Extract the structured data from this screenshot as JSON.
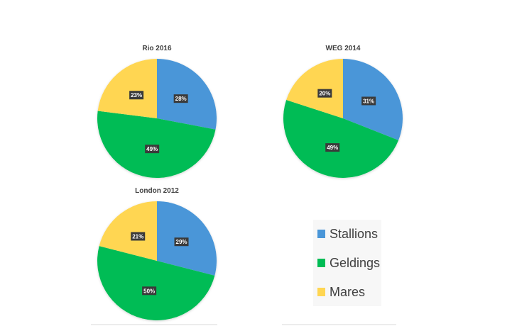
{
  "chart_data": [
    {
      "type": "pie",
      "title": "Rio 2016",
      "categories": [
        "Stallions",
        "Geldings",
        "Mares"
      ],
      "values": [
        28,
        49,
        23
      ],
      "labels": [
        "28%",
        "49%",
        "23%"
      ]
    },
    {
      "type": "pie",
      "title": "WEG 2014",
      "categories": [
        "Stallions",
        "Geldings",
        "Mares"
      ],
      "values": [
        31,
        49,
        20
      ],
      "labels": [
        "31%",
        "49%",
        "20%"
      ]
    },
    {
      "type": "pie",
      "title": "London 2012",
      "categories": [
        "Stallions",
        "Geldings",
        "Mares"
      ],
      "values": [
        29,
        50,
        21
      ],
      "labels": [
        "29%",
        "50%",
        "21%"
      ]
    }
  ],
  "legend": {
    "position": "bottom-right",
    "items": [
      {
        "label": "Stallions",
        "color": "#4a96d8"
      },
      {
        "label": "Geldings",
        "color": "#00bc55"
      },
      {
        "label": "Mares",
        "color": "#ffd652"
      }
    ]
  },
  "colors": {
    "stallions": "#4a96d8",
    "geldings": "#00bc55",
    "mares": "#ffd652",
    "label_bg": "#3a3a3a",
    "label_text": "#ffffff",
    "title_text": "#404040"
  }
}
